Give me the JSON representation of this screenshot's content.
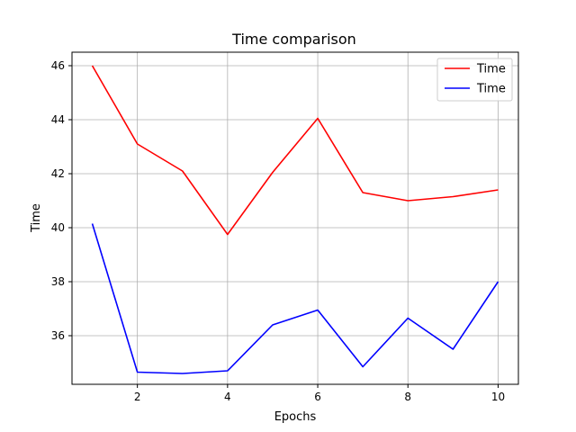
{
  "chart_data": {
    "type": "line",
    "title": "Time comparison",
    "xlabel": "Epochs",
    "ylabel": "Time",
    "x": [
      1,
      2,
      3,
      4,
      5,
      6,
      7,
      8,
      9,
      10
    ],
    "xlim": [
      0.55,
      10.45
    ],
    "ylim": [
      34.2,
      46.5
    ],
    "xticks": [
      2,
      4,
      6,
      8,
      10
    ],
    "yticks": [
      36,
      38,
      40,
      42,
      44,
      46
    ],
    "grid": true,
    "legend": "top-right",
    "series": [
      {
        "name": "Time",
        "color": "#ff0000",
        "values": [
          46.0,
          43.1,
          42.1,
          39.75,
          42.05,
          44.05,
          41.3,
          41.0,
          41.15,
          41.4
        ]
      },
      {
        "name": "Time",
        "color": "#0000ff",
        "values": [
          40.15,
          34.65,
          34.6,
          34.7,
          36.4,
          36.95,
          34.85,
          36.65,
          35.5,
          38.0
        ]
      }
    ]
  }
}
